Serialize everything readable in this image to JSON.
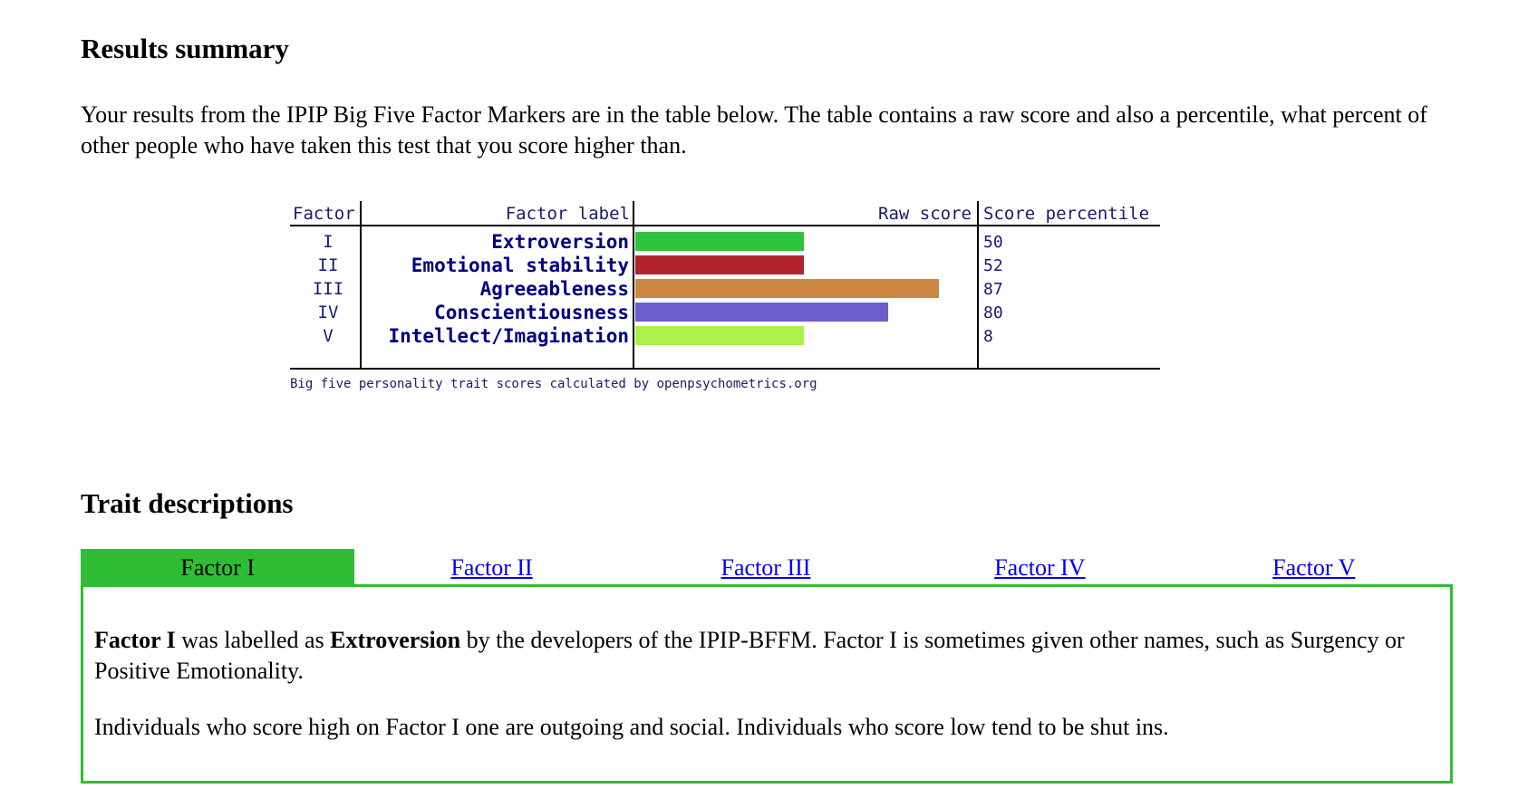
{
  "results": {
    "heading": "Results summary",
    "intro": "Your results from the IPIP Big Five Factor Markers are in the table below. The table contains a raw score and also a percentile, what percent of other people who have taken this test that you score higher than."
  },
  "chart_data": {
    "type": "bar",
    "headers": {
      "factor": "Factor",
      "label": "Factor label",
      "raw": "Raw score",
      "percentile": "Score percentile"
    },
    "categories": [
      "I",
      "II",
      "III",
      "IV",
      "V"
    ],
    "labels": [
      "Extroversion",
      "Emotional stability",
      "Agreeableness",
      "Conscientiousness",
      "Intellect/Imagination"
    ],
    "values": [
      50,
      52,
      87,
      80,
      8
    ],
    "raw_fraction": [
      0.5,
      0.5,
      0.9,
      0.75,
      0.5
    ],
    "colors": [
      "#2fc23c",
      "#b0242e",
      "#cc8843",
      "#6b5fcc",
      "#acf24b"
    ],
    "footer": "Big five personality trait scores calculated by openpsychometrics.org"
  },
  "traits": {
    "heading": "Trait descriptions",
    "tabs": [
      "Factor I",
      "Factor II",
      "Factor III",
      "Factor IV",
      "Factor V"
    ],
    "active_tab": 0,
    "panel": {
      "p1_bold1": "Factor I",
      "p1_text1": " was labelled as ",
      "p1_bold2": "Extroversion",
      "p1_text2": " by the developers of the IPIP-BFFM. Factor I is sometimes given other names, such as Surgency or Positive Emotionality.",
      "p2": "Individuals who score high on Factor I one are outgoing and social. Individuals who score low tend to be shut ins."
    }
  },
  "colors": {
    "accent": "#2ebd35",
    "link": "#0000ee",
    "label_text": "#000080",
    "header_text": "#1a1a6e"
  }
}
